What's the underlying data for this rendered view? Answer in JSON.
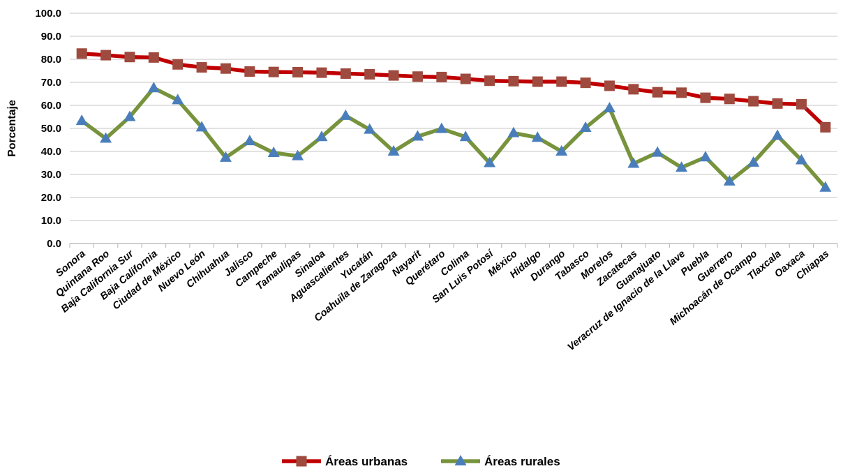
{
  "chart_data": {
    "type": "line",
    "ylabel": "Porcentaje",
    "xlabel": "",
    "ylim": [
      0,
      100
    ],
    "yticks": [
      "0.0",
      "10.0",
      "20.0",
      "30.0",
      "40.0",
      "50.0",
      "60.0",
      "70.0",
      "80.0",
      "90.0",
      "100.0"
    ],
    "grid": true,
    "legend_position": "bottom-center",
    "categories": [
      "Sonora",
      "Quintana Roo",
      "Baja California Sur",
      "Baja California",
      "Ciudad de México",
      "Nuevo León",
      "Chihuahua",
      "Jalisco",
      "Campeche",
      "Tamaulipas",
      "Sinaloa",
      "Aguascalientes",
      "Yucatán",
      "Coahuila de Zaragoza",
      "Nayarit",
      "Querétaro",
      "Colima",
      "San Luis Potosí",
      "México",
      "Hidalgo",
      "Durango",
      "Tabasco",
      "Morelos",
      "Zacatecas",
      "Guanajuato",
      "Veracruz de Ignacio de la Llave",
      "Puebla",
      "Guerrero",
      "Michoacán de Ocampo",
      "Tlaxcala",
      "Oaxaca",
      "Chiapas"
    ],
    "series": [
      {
        "name": "Áreas urbanas",
        "color": "#C00000",
        "marker": "square",
        "marker_color": "#9E4A3F",
        "values": [
          82.5,
          81.8,
          81.0,
          80.8,
          77.8,
          76.5,
          76.0,
          74.7,
          74.5,
          74.4,
          74.2,
          73.8,
          73.5,
          73.0,
          72.5,
          72.3,
          71.5,
          70.7,
          70.5,
          70.3,
          70.3,
          69.8,
          68.5,
          67.0,
          65.7,
          65.5,
          63.3,
          62.8,
          61.8,
          60.8,
          60.5,
          50.5
        ]
      },
      {
        "name": "Áreas rurales",
        "color": "#77933C",
        "marker": "triangle",
        "marker_color": "#4A7EBB",
        "values": [
          53.3,
          45.6,
          55.0,
          67.5,
          62.3,
          50.5,
          37.3,
          44.5,
          39.4,
          38.0,
          46.3,
          55.5,
          49.5,
          40.0,
          46.5,
          49.8,
          46.3,
          35.0,
          48.0,
          46.0,
          40.0,
          50.3,
          58.8,
          34.7,
          39.5,
          33.0,
          37.5,
          27.0,
          35.2,
          46.8,
          36.2,
          24.3
        ]
      }
    ]
  }
}
